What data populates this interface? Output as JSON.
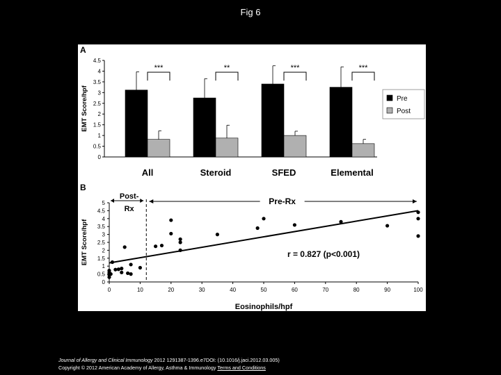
{
  "slide": {
    "title": "Fig 6"
  },
  "footer": {
    "journal": "Journal of Allergy and Clinical Immunology",
    "citation": " 2012 1291387-1396.e7DOI: (10.1016/j.jaci.2012.03.005)",
    "copyright": "Copyright © 2012 American Academy of Allergy, Asthma & Immunology ",
    "terms_link": "Terms and Conditions"
  },
  "chart_data": [
    {
      "panel_label": "A",
      "type": "bar",
      "categories": [
        "All",
        "Steroid",
        "SFED",
        "Elemental"
      ],
      "series": [
        {
          "name": "Pre",
          "color": "#000000",
          "values": [
            3.12,
            2.75,
            3.4,
            3.25
          ],
          "error": [
            0.85,
            0.9,
            0.85,
            0.95
          ]
        },
        {
          "name": "Post",
          "color": "#b0b0b0",
          "values": [
            0.82,
            0.88,
            1.0,
            0.62
          ],
          "error": [
            0.4,
            0.6,
            0.2,
            0.2
          ]
        }
      ],
      "significance": [
        "***",
        "**",
        "***",
        "***"
      ],
      "ylabel": "EMT Score/hpf",
      "ylim": [
        0,
        4.5
      ],
      "yticks": [
        "0",
        "0.5",
        "1",
        "1.5",
        "2",
        "2.5",
        "3",
        "3.5",
        "4",
        "4.5"
      ],
      "legend_position": "right"
    },
    {
      "panel_label": "B",
      "type": "scatter",
      "xlabel": "Eosinophils/hpf",
      "ylabel": "EMT Score/hpf",
      "xlim": [
        0,
        100
      ],
      "ylim": [
        0,
        5
      ],
      "xticks": [
        "0",
        "10",
        "20",
        "30",
        "40",
        "50",
        "60",
        "70",
        "80",
        "90",
        "100"
      ],
      "yticks": [
        "0",
        "0.5",
        "1",
        "1.5",
        "2",
        "2.5",
        "3",
        "3.5",
        "4",
        "4.5",
        "5"
      ],
      "points": [
        [
          0,
          0.3
        ],
        [
          0,
          0.45
        ],
        [
          0,
          0.6
        ],
        [
          0,
          0.72
        ],
        [
          0.5,
          0.5
        ],
        [
          1,
          1.25
        ],
        [
          2,
          0.78
        ],
        [
          3,
          0.8
        ],
        [
          4,
          0.85
        ],
        [
          4,
          0.6
        ],
        [
          5,
          2.2
        ],
        [
          6,
          0.55
        ],
        [
          7,
          0.5
        ],
        [
          7,
          1.1
        ],
        [
          10,
          0.9
        ],
        [
          15,
          2.25
        ],
        [
          17,
          2.3
        ],
        [
          20,
          3.9
        ],
        [
          20,
          3.05
        ],
        [
          23,
          2.7
        ],
        [
          23,
          2.5
        ],
        [
          23,
          2.0
        ],
        [
          35,
          3.0
        ],
        [
          48,
          3.4
        ],
        [
          50,
          4.0
        ],
        [
          60,
          3.6
        ],
        [
          75,
          3.8
        ],
        [
          90,
          3.55
        ],
        [
          100,
          4.4
        ],
        [
          100,
          4.0
        ],
        [
          100,
          2.9
        ]
      ],
      "regression": {
        "x": [
          0,
          100
        ],
        "y": [
          1.2,
          4.5
        ]
      },
      "divider_x": 12,
      "annotation": "r = 0.827 (p<0.001)",
      "region_labels": {
        "left": "Post-Rx",
        "right": "Pre-Rx"
      }
    }
  ]
}
